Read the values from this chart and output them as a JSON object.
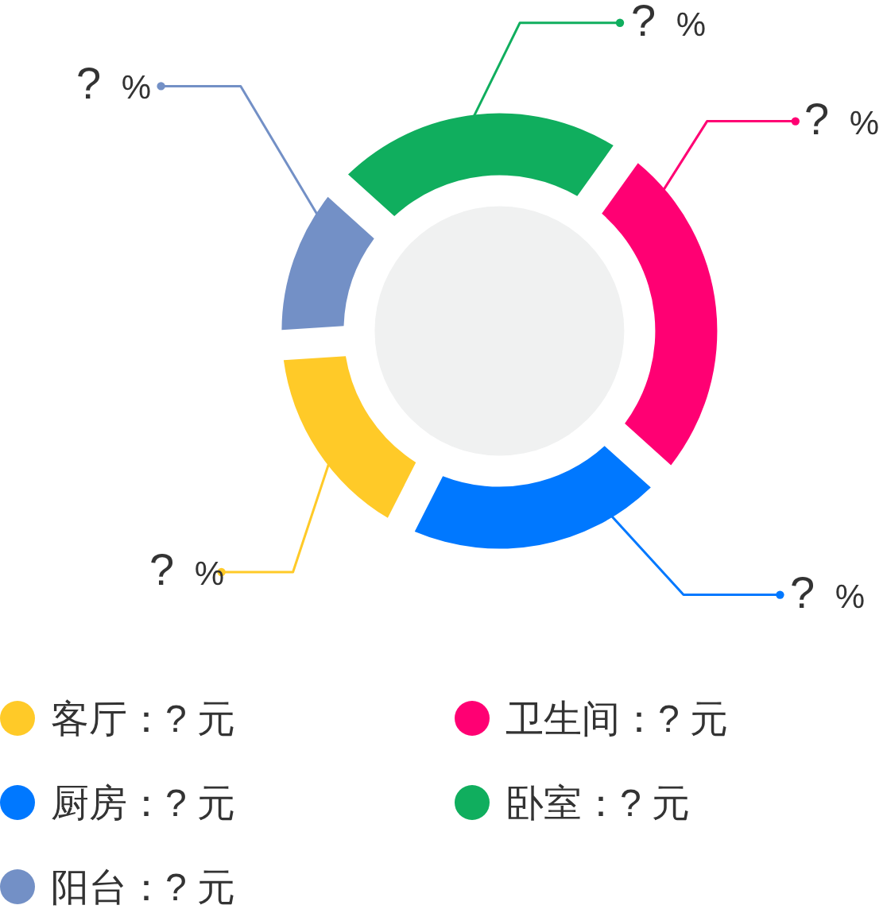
{
  "chart_data": {
    "type": "donut",
    "categories": [
      "客厅：? 元",
      "卫生间：? 元",
      "厨房：? 元",
      "卧室：? 元",
      "阳台：? 元"
    ],
    "values": [
      16.5,
      26.8,
      20.8,
      23.2,
      12.7
    ],
    "colors": [
      "#ffca28",
      "#ff0073",
      "#0078ff",
      "#10ae5e",
      "#7390c6"
    ],
    "value_labels": [
      "? %",
      "? %",
      "? %",
      "? %",
      "? %"
    ],
    "legend": "bottom"
  }
}
